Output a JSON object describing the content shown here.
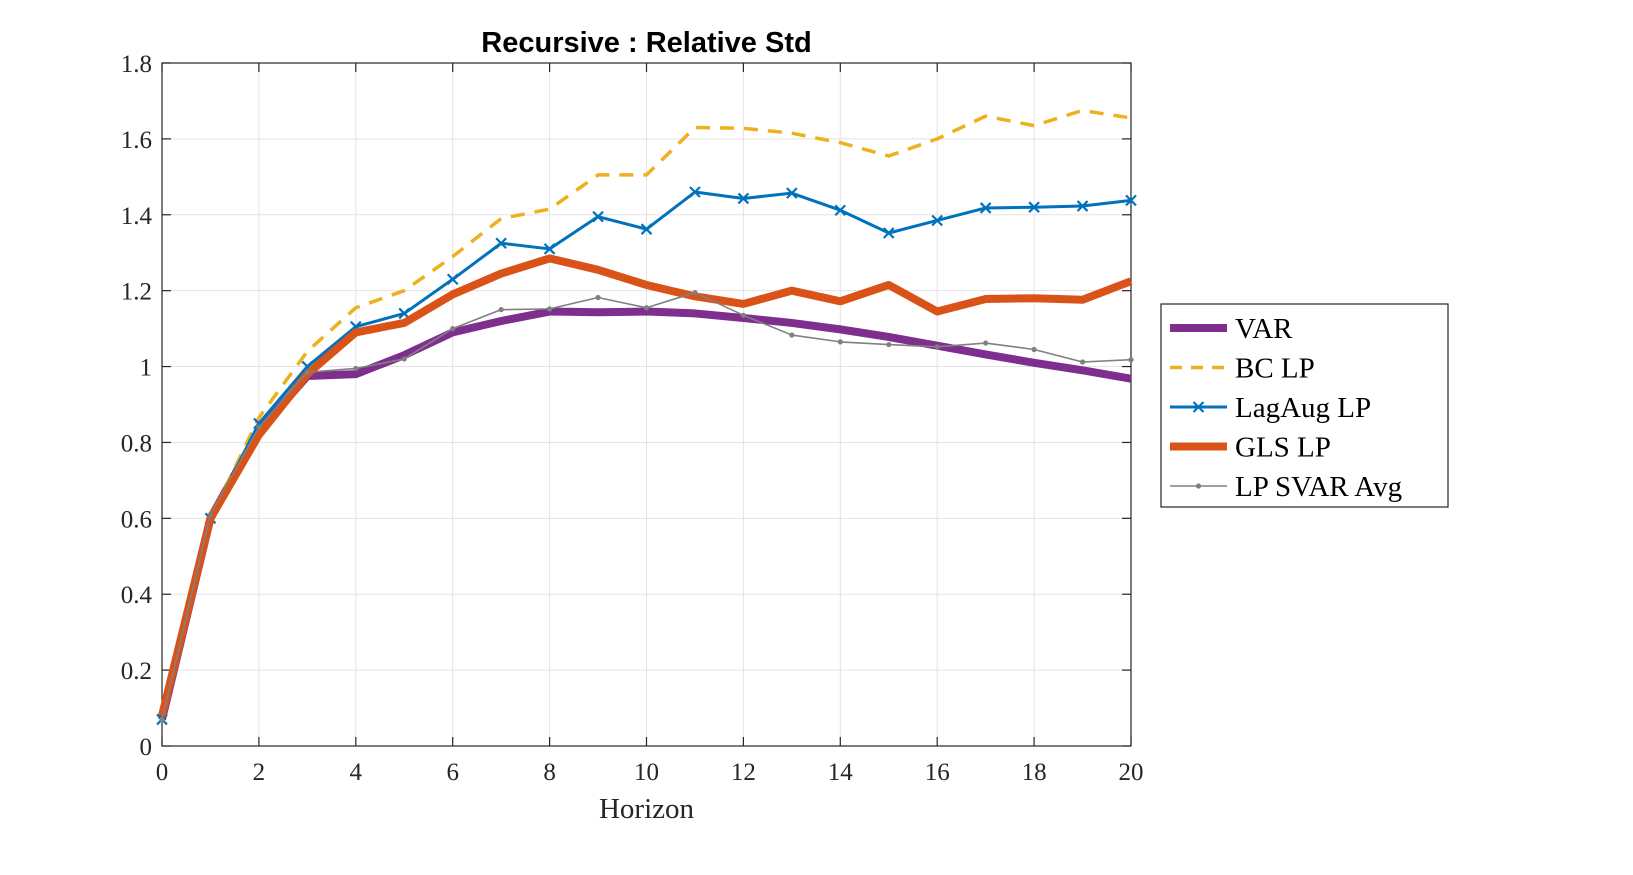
{
  "chart_data": {
    "type": "line",
    "title": "Recursive : Relative Std",
    "xlabel": "Horizon",
    "ylabel": "",
    "xlim": [
      0,
      20
    ],
    "ylim": [
      0,
      1.8
    ],
    "xticks": [
      0,
      2,
      4,
      6,
      8,
      10,
      12,
      14,
      16,
      18,
      20
    ],
    "yticks": [
      0,
      0.2,
      0.4,
      0.6,
      0.8,
      1,
      1.2,
      1.4,
      1.6,
      1.8
    ],
    "xtick_labels": [
      "0",
      "2",
      "4",
      "6",
      "8",
      "10",
      "12",
      "14",
      "16",
      "18",
      "20"
    ],
    "ytick_labels": [
      "0",
      "0.2",
      "0.4",
      "0.6",
      "0.8",
      "1",
      "1.2",
      "1.4",
      "1.6",
      "1.8"
    ],
    "grid": true,
    "legend_position": "outside-right",
    "x": [
      0,
      1,
      2,
      3,
      4,
      5,
      6,
      7,
      8,
      9,
      10,
      11,
      12,
      13,
      14,
      15,
      16,
      17,
      18,
      19,
      20
    ],
    "series": [
      {
        "name": "VAR",
        "color": "#7E2F8E",
        "style": "thick",
        "marker": "none",
        "values": [
          0.07,
          0.6,
          0.83,
          0.975,
          0.98,
          1.03,
          1.09,
          1.12,
          1.145,
          1.143,
          1.145,
          1.14,
          1.128,
          1.115,
          1.098,
          1.078,
          1.055,
          1.032,
          1.01,
          0.99,
          0.968
        ]
      },
      {
        "name": "BC LP",
        "color": "#EDB120",
        "style": "dashed",
        "marker": "none",
        "values": [
          0.07,
          0.6,
          0.865,
          1.04,
          1.155,
          1.2,
          1.29,
          1.39,
          1.415,
          1.505,
          1.505,
          1.63,
          1.628,
          1.615,
          1.59,
          1.555,
          1.6,
          1.66,
          1.635,
          1.675,
          1.655
        ]
      },
      {
        "name": "LagAug LP",
        "color": "#0072BD",
        "style": "solid",
        "marker": "x",
        "values": [
          0.07,
          0.6,
          0.85,
          1.0,
          1.105,
          1.14,
          1.23,
          1.325,
          1.31,
          1.395,
          1.362,
          1.46,
          1.443,
          1.457,
          1.412,
          1.352,
          1.385,
          1.418,
          1.42,
          1.423,
          1.438
        ]
      },
      {
        "name": "GLS LP",
        "color": "#D95319",
        "style": "thick",
        "marker": "none",
        "values": [
          0.08,
          0.6,
          0.82,
          0.98,
          1.09,
          1.115,
          1.19,
          1.245,
          1.285,
          1.255,
          1.215,
          1.185,
          1.165,
          1.2,
          1.172,
          1.215,
          1.145,
          1.178,
          1.18,
          1.176,
          1.225
        ]
      },
      {
        "name": "LP SVAR Avg",
        "color": "#808080",
        "style": "thin",
        "marker": "dot",
        "values": [
          0.07,
          0.61,
          0.84,
          0.985,
          0.995,
          1.02,
          1.1,
          1.15,
          1.152,
          1.182,
          1.155,
          1.195,
          1.135,
          1.083,
          1.065,
          1.058,
          1.052,
          1.062,
          1.045,
          1.012,
          1.018
        ]
      }
    ]
  }
}
